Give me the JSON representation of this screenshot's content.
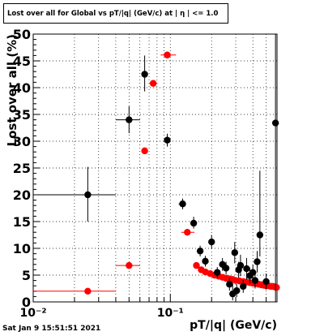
{
  "chart_data": {
    "type": "scatter",
    "title": "Lost over all for Global vs pT/|q| (GeV/c) at | η | <= 1.0",
    "xlabel": "pT/|q| (GeV/c)",
    "ylabel": "Lost over all (%)",
    "xscale": "log",
    "xlim": [
      0.01,
      0.6
    ],
    "ylim": [
      0,
      50
    ],
    "yticks": [
      0,
      5,
      10,
      15,
      20,
      25,
      30,
      35,
      40,
      45,
      50
    ],
    "xtick_labels": [
      {
        "v": 0.01,
        "label": "10⁻²"
      },
      {
        "v": 0.1,
        "label": "10⁻¹"
      }
    ],
    "grid": true,
    "series": [
      {
        "color": "#ff0000",
        "points": [
          {
            "x": 0.025,
            "y": 2.0,
            "xlo": 0.01,
            "xhi": 0.04,
            "ylo": 0.3,
            "yhi": 0.3
          },
          {
            "x": 0.05,
            "y": 6.8,
            "xlo": 0.04,
            "xhi": 0.06,
            "ylo": 0.3,
            "yhi": 0.3
          },
          {
            "x": 0.065,
            "y": 28.2,
            "xlo": 0.062,
            "xhi": 0.068,
            "ylo": 0.5,
            "yhi": 0.5
          },
          {
            "x": 0.075,
            "y": 40.8,
            "xlo": 0.07,
            "xhi": 0.08,
            "ylo": 0.5,
            "yhi": 0.5
          },
          {
            "x": 0.095,
            "y": 46.1,
            "xlo": 0.085,
            "xhi": 0.11,
            "ylo": 0.5,
            "yhi": 0.5
          },
          {
            "x": 0.133,
            "y": 13.0,
            "xlo": 0.12,
            "xhi": 0.15,
            "ylo": 0.3,
            "yhi": 0.3
          },
          {
            "x": 0.155,
            "y": 6.8,
            "xlo": 0.15,
            "xhi": 0.16,
            "ylo": 0.3,
            "yhi": 0.3
          },
          {
            "x": 0.168,
            "y": 6.0,
            "xlo": 0.163,
            "xhi": 0.173,
            "ylo": 0.3,
            "yhi": 0.3
          },
          {
            "x": 0.18,
            "y": 5.6,
            "xlo": 0.175,
            "xhi": 0.185,
            "ylo": 0.3,
            "yhi": 0.3
          },
          {
            "x": 0.195,
            "y": 5.3,
            "xlo": 0.19,
            "xhi": 0.2,
            "ylo": 0.3,
            "yhi": 0.3
          },
          {
            "x": 0.21,
            "y": 5.0,
            "xlo": 0.205,
            "xhi": 0.215,
            "ylo": 0.3,
            "yhi": 0.3
          },
          {
            "x": 0.225,
            "y": 4.8,
            "xlo": 0.22,
            "xhi": 0.23,
            "ylo": 0.3,
            "yhi": 0.3
          },
          {
            "x": 0.24,
            "y": 4.6,
            "xlo": 0.235,
            "xhi": 0.245,
            "ylo": 0.3,
            "yhi": 0.3
          },
          {
            "x": 0.255,
            "y": 4.4,
            "xlo": 0.25,
            "xhi": 0.26,
            "ylo": 0.3,
            "yhi": 0.3
          },
          {
            "x": 0.27,
            "y": 4.3,
            "xlo": 0.265,
            "xhi": 0.275,
            "ylo": 0.3,
            "yhi": 0.3
          },
          {
            "x": 0.285,
            "y": 4.2,
            "xlo": 0.28,
            "xhi": 0.29,
            "ylo": 0.3,
            "yhi": 0.3
          },
          {
            "x": 0.3,
            "y": 4.0,
            "xlo": 0.295,
            "xhi": 0.305,
            "ylo": 0.3,
            "yhi": 0.3
          },
          {
            "x": 0.32,
            "y": 3.9,
            "xlo": 0.31,
            "xhi": 0.33,
            "ylo": 0.3,
            "yhi": 0.3
          },
          {
            "x": 0.34,
            "y": 3.8,
            "xlo": 0.33,
            "xhi": 0.35,
            "ylo": 0.3,
            "yhi": 0.3
          },
          {
            "x": 0.36,
            "y": 3.7,
            "xlo": 0.35,
            "xhi": 0.37,
            "ylo": 0.3,
            "yhi": 0.3
          },
          {
            "x": 0.38,
            "y": 3.6,
            "xlo": 0.37,
            "xhi": 0.39,
            "ylo": 0.3,
            "yhi": 0.3
          },
          {
            "x": 0.4,
            "y": 3.5,
            "xlo": 0.39,
            "xhi": 0.41,
            "ylo": 0.3,
            "yhi": 0.3
          },
          {
            "x": 0.42,
            "y": 3.4,
            "xlo": 0.41,
            "xhi": 0.43,
            "ylo": 0.3,
            "yhi": 0.3
          },
          {
            "x": 0.44,
            "y": 3.3,
            "xlo": 0.43,
            "xhi": 0.45,
            "ylo": 0.3,
            "yhi": 0.3
          },
          {
            "x": 0.46,
            "y": 3.2,
            "xlo": 0.45,
            "xhi": 0.47,
            "ylo": 0.3,
            "yhi": 0.3
          },
          {
            "x": 0.48,
            "y": 3.1,
            "xlo": 0.47,
            "xhi": 0.49,
            "ylo": 0.3,
            "yhi": 0.3
          },
          {
            "x": 0.5,
            "y": 3.0,
            "xlo": 0.49,
            "xhi": 0.51,
            "ylo": 0.3,
            "yhi": 0.3
          },
          {
            "x": 0.52,
            "y": 3.0,
            "xlo": 0.51,
            "xhi": 0.53,
            "ylo": 0.3,
            "yhi": 0.3
          },
          {
            "x": 0.54,
            "y": 2.9,
            "xlo": 0.53,
            "xhi": 0.55,
            "ylo": 0.3,
            "yhi": 0.3
          },
          {
            "x": 0.56,
            "y": 2.9,
            "xlo": 0.55,
            "xhi": 0.57,
            "ylo": 0.3,
            "yhi": 0.3
          },
          {
            "x": 0.58,
            "y": 2.8,
            "xlo": 0.57,
            "xhi": 0.59,
            "ylo": 0.3,
            "yhi": 0.3
          },
          {
            "x": 0.595,
            "y": 2.7,
            "xlo": 0.59,
            "xhi": 0.6,
            "ylo": 0.3,
            "yhi": 0.3
          }
        ]
      },
      {
        "color": "#000000",
        "points": [
          {
            "x": 0.025,
            "y": 20.0,
            "xlo": 0.01,
            "xhi": 0.04,
            "ylo": 5.0,
            "yhi": 5.2
          },
          {
            "x": 0.05,
            "y": 34.0,
            "xlo": 0.04,
            "xhi": 0.06,
            "ylo": 2.5,
            "yhi": 2.5
          },
          {
            "x": 0.065,
            "y": 42.5,
            "xlo": 0.062,
            "xhi": 0.068,
            "ylo": 3.2,
            "yhi": 3.5
          },
          {
            "x": 0.095,
            "y": 30.2,
            "xlo": 0.09,
            "xhi": 0.1,
            "ylo": 1.2,
            "yhi": 1.2
          },
          {
            "x": 0.123,
            "y": 18.3,
            "xlo": 0.115,
            "xhi": 0.13,
            "ylo": 1.0,
            "yhi": 1.0
          },
          {
            "x": 0.148,
            "y": 14.7,
            "xlo": 0.142,
            "xhi": 0.155,
            "ylo": 1.0,
            "yhi": 1.2
          },
          {
            "x": 0.165,
            "y": 9.5,
            "xlo": 0.16,
            "xhi": 0.17,
            "ylo": 1.0,
            "yhi": 1.0
          },
          {
            "x": 0.18,
            "y": 7.6,
            "xlo": 0.175,
            "xhi": 0.185,
            "ylo": 1.0,
            "yhi": 1.0
          },
          {
            "x": 0.2,
            "y": 11.2,
            "xlo": 0.195,
            "xhi": 0.205,
            "ylo": 1.3,
            "yhi": 1.3
          },
          {
            "x": 0.22,
            "y": 5.5,
            "xlo": 0.215,
            "xhi": 0.225,
            "ylo": 1.0,
            "yhi": 1.0
          },
          {
            "x": 0.24,
            "y": 7.0,
            "xlo": 0.235,
            "xhi": 0.245,
            "ylo": 1.2,
            "yhi": 1.2
          },
          {
            "x": 0.255,
            "y": 6.3,
            "xlo": 0.25,
            "xhi": 0.26,
            "ylo": 1.2,
            "yhi": 1.2
          },
          {
            "x": 0.27,
            "y": 3.3,
            "xlo": 0.265,
            "xhi": 0.275,
            "ylo": 1.2,
            "yhi": 1.2
          },
          {
            "x": 0.285,
            "y": 1.5,
            "xlo": 0.28,
            "xhi": 0.29,
            "ylo": 1.2,
            "yhi": 2.0
          },
          {
            "x": 0.295,
            "y": 9.2,
            "xlo": 0.29,
            "xhi": 0.3,
            "ylo": 2.0,
            "yhi": 2.0
          },
          {
            "x": 0.305,
            "y": 2.1,
            "xlo": 0.3,
            "xhi": 0.31,
            "ylo": 1.2,
            "yhi": 1.2
          },
          {
            "x": 0.315,
            "y": 6.0,
            "xlo": 0.31,
            "xhi": 0.32,
            "ylo": 1.5,
            "yhi": 1.5
          },
          {
            "x": 0.325,
            "y": 6.8,
            "xlo": 0.32,
            "xhi": 0.33,
            "ylo": 2.0,
            "yhi": 2.0
          },
          {
            "x": 0.34,
            "y": 2.9,
            "xlo": 0.33,
            "xhi": 0.35,
            "ylo": 1.2,
            "yhi": 1.2
          },
          {
            "x": 0.36,
            "y": 6.2,
            "xlo": 0.35,
            "xhi": 0.37,
            "ylo": 2.0,
            "yhi": 2.0
          },
          {
            "x": 0.38,
            "y": 4.9,
            "xlo": 0.37,
            "xhi": 0.39,
            "ylo": 1.5,
            "yhi": 1.5
          },
          {
            "x": 0.4,
            "y": 5.5,
            "xlo": 0.39,
            "xhi": 0.41,
            "ylo": 1.5,
            "yhi": 1.5
          },
          {
            "x": 0.415,
            "y": 4.0,
            "xlo": 0.41,
            "xhi": 0.42,
            "ylo": 1.5,
            "yhi": 1.5
          },
          {
            "x": 0.43,
            "y": 7.5,
            "xlo": 0.42,
            "xhi": 0.44,
            "ylo": 2.0,
            "yhi": 2.0
          },
          {
            "x": 0.45,
            "y": 12.5,
            "xlo": 0.44,
            "xhi": 0.46,
            "ylo": 4.0,
            "yhi": 12.0
          },
          {
            "x": 0.5,
            "y": 3.8,
            "xlo": 0.49,
            "xhi": 0.51,
            "ylo": 1.5,
            "yhi": 1.5
          },
          {
            "x": 0.585,
            "y": 33.4,
            "xlo": 0.58,
            "xhi": 0.59,
            "ylo": 33.4,
            "yhi": 16.6
          }
        ]
      }
    ]
  },
  "footer": {
    "datestamp": "Sat Jan  9 15:51:51 2021"
  }
}
